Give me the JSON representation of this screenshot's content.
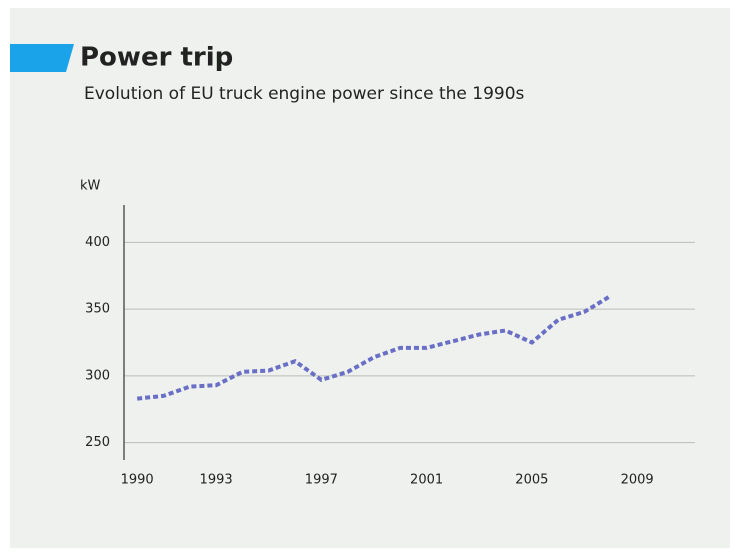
{
  "chart_data": {
    "type": "line",
    "title": "Power trip",
    "subtitle": "Evolution of EU truck engine power since the 1990s",
    "y_label": "kW",
    "x": [
      1990,
      1991,
      1992,
      1993,
      1994,
      1995,
      1996,
      1997,
      1998,
      1999,
      2000,
      2001,
      2002,
      2003,
      2004,
      2005,
      2006,
      2007,
      2008
    ],
    "series": [
      {
        "name": "Engine power",
        "color": "#6a6fc6",
        "values": [
          283,
          285,
          292,
          293,
          303,
          304,
          311,
          297,
          303,
          314,
          321,
          321,
          326,
          331,
          334,
          325,
          342,
          348,
          360
        ]
      }
    ],
    "xlim": [
      1989.5,
      2011.2
    ],
    "xticks": [
      1990,
      1993,
      1997,
      2001,
      2005,
      2009
    ],
    "ylim": [
      237,
      428
    ],
    "yticks": [
      250,
      300,
      350,
      400
    ],
    "grid": true
  }
}
